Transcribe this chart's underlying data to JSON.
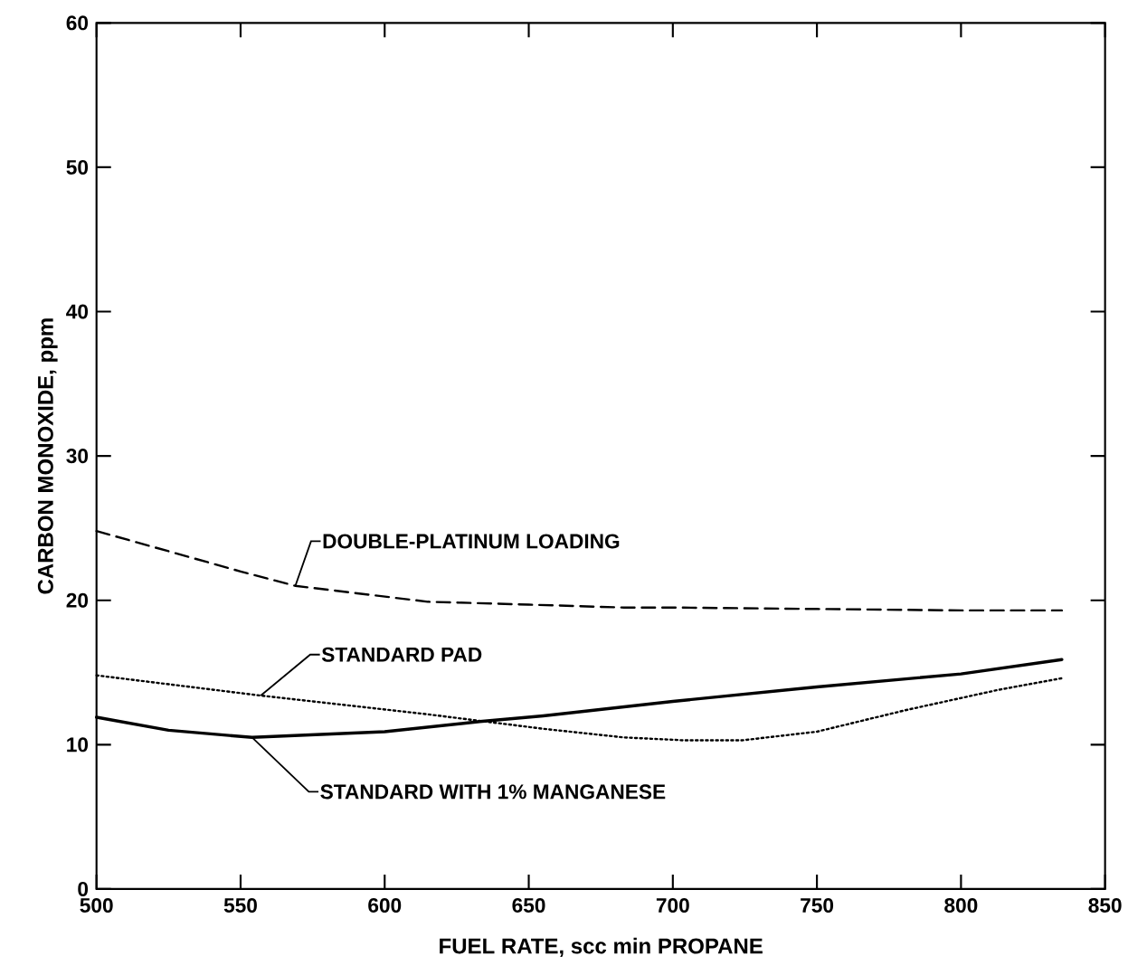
{
  "chart_data": {
    "type": "line",
    "xlabel": "FUEL RATE, scc min PROPANE",
    "ylabel": "CARBON MONOXIDE, ppm",
    "xlim": [
      500,
      850
    ],
    "xticks": [
      500,
      550,
      600,
      650,
      700,
      750,
      800,
      850
    ],
    "ylim": [
      0,
      60
    ],
    "yticks": [
      0,
      10,
      20,
      30,
      40,
      50,
      60
    ],
    "grid": false,
    "series": [
      {
        "name": "DOUBLE-PLATINUM LOADING",
        "color": "#000000",
        "line_style": "dashed",
        "x": [
          500,
          550,
          569,
          615,
          650,
          683,
          700,
          750,
          800,
          835
        ],
        "values": [
          24.8,
          22.0,
          21.0,
          19.9,
          19.7,
          19.5,
          19.5,
          19.4,
          19.3,
          19.3
        ]
      },
      {
        "name": "STANDARD PAD",
        "color": "#000000",
        "line_style": "dotted",
        "x": [
          500,
          557,
          615,
          655,
          683,
          704,
          724,
          750,
          781,
          813,
          835
        ],
        "values": [
          14.8,
          13.4,
          12.1,
          11.1,
          10.5,
          10.3,
          10.3,
          10.9,
          12.4,
          13.8,
          14.6
        ]
      },
      {
        "name": "STANDARD WITH 1% MANGANESE",
        "color": "#000000",
        "line_style": "solid",
        "x": [
          500,
          525,
          554,
          600,
          633,
          655,
          700,
          750,
          800,
          835
        ],
        "values": [
          11.9,
          11.0,
          10.5,
          10.9,
          11.6,
          12.0,
          13.0,
          14.0,
          14.9,
          15.9
        ]
      }
    ]
  }
}
